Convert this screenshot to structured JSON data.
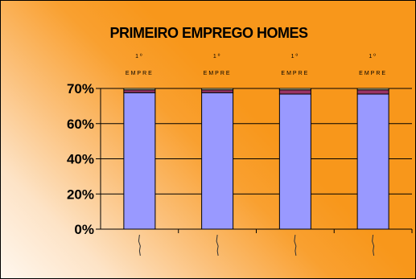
{
  "chart_data": {
    "type": "bar",
    "stacked": true,
    "percent": true,
    "title": "PRIMEIRO EMPREGO HOMES",
    "xlabel": "",
    "ylabel": "",
    "ylim": [
      0,
      100
    ],
    "yticks": [
      "0%",
      "20%",
      "40%",
      "60%",
      "70%"
    ],
    "categories": [
      "",
      "",
      "",
      ""
    ],
    "top_labels": [
      {
        "line1": "1º",
        "line2": "EMPRE"
      },
      {
        "line1": "1º",
        "line2": "EMPRE"
      },
      {
        "line1": "1º",
        "line2": "EMPRE"
      },
      {
        "line1": "1º",
        "line2": "EMPRE"
      }
    ],
    "series": [
      {
        "values": [
          97,
          97,
          96,
          96
        ],
        "color": "#9999ff"
      },
      {
        "values": [
          2,
          2,
          3,
          3
        ],
        "color": "#993366"
      },
      {
        "values": [
          1,
          1,
          1,
          1
        ],
        "color": "#ffffcc"
      }
    ],
    "grid": true,
    "legend": "none"
  }
}
